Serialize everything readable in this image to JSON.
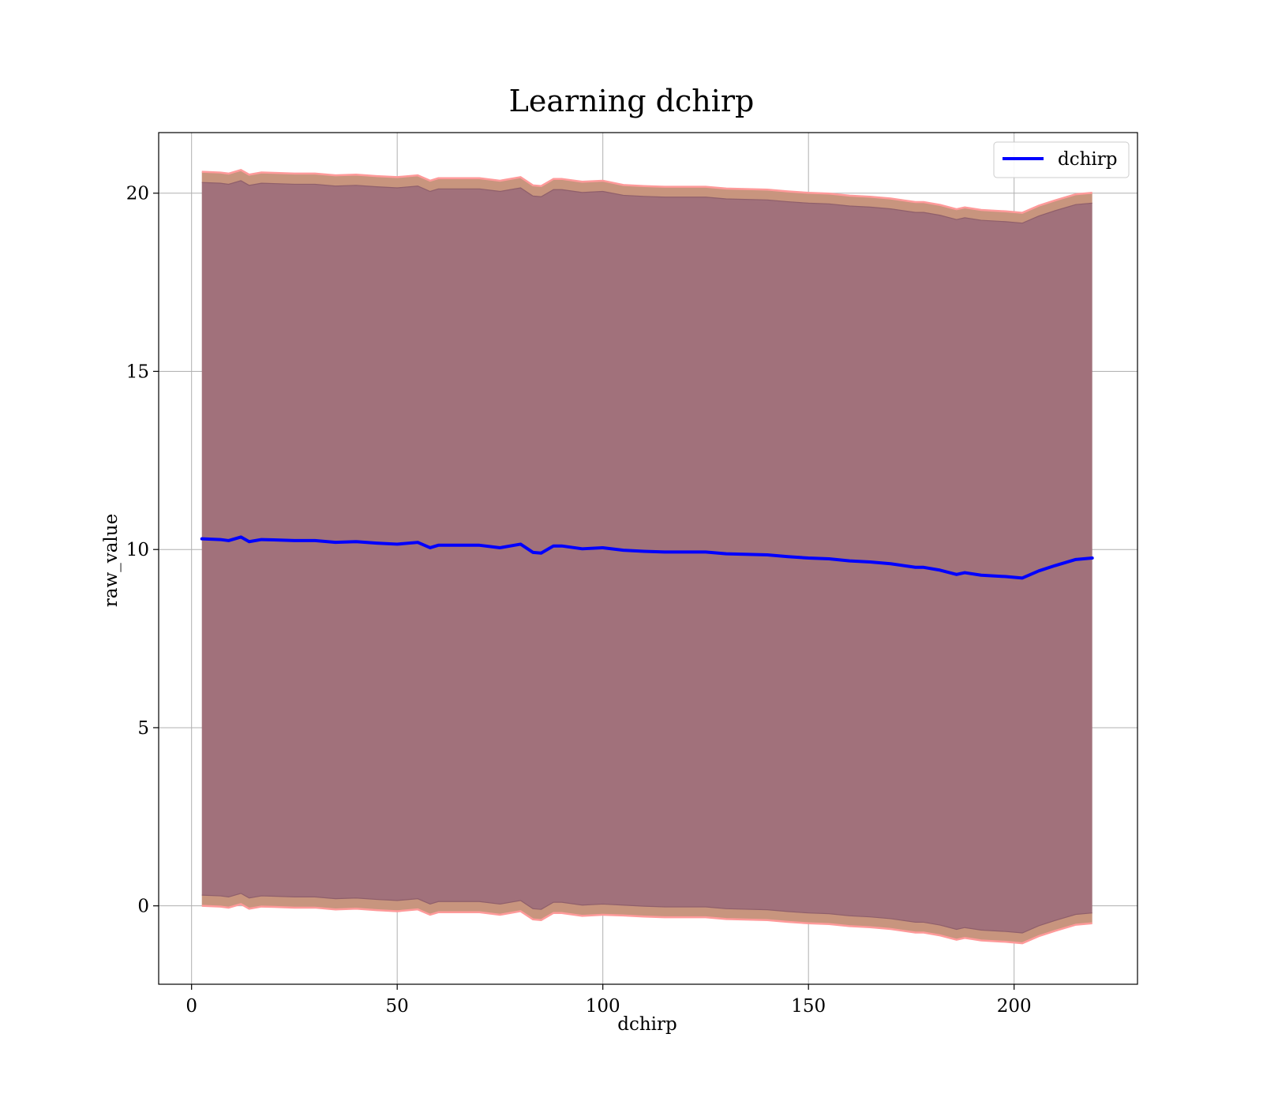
{
  "chart_data": {
    "type": "area",
    "title": "Learning dchirp",
    "xlabel": "dchirp",
    "ylabel": "raw_value",
    "xlim": [
      -8,
      230
    ],
    "ylim": [
      -2.2,
      21.7
    ],
    "xticks": [
      0,
      50,
      100,
      150,
      200
    ],
    "yticks": [
      0,
      5,
      10,
      15,
      20
    ],
    "grid": true,
    "legend": {
      "position": "top-right",
      "entries": [
        "dchirp"
      ]
    },
    "colors": {
      "line": "#0000ff",
      "band_inner": "#a1717b",
      "band_outer": "#c8957e",
      "band_edge": "#ff9a9a"
    },
    "series": [
      {
        "name": "dchirp",
        "x": [
          2.5,
          7,
          9,
          12,
          14,
          17,
          20,
          25,
          30,
          35,
          40,
          45,
          50,
          55,
          58,
          60,
          65,
          70,
          75,
          80,
          83,
          85,
          88,
          90,
          95,
          100,
          105,
          110,
          115,
          120,
          125,
          130,
          140,
          145,
          150,
          155,
          160,
          165,
          170,
          176,
          178,
          182,
          186,
          188,
          192,
          198,
          202,
          206,
          210,
          215,
          219
        ],
        "mean": [
          10.3,
          10.28,
          10.25,
          10.35,
          10.22,
          10.28,
          10.27,
          10.25,
          10.25,
          10.2,
          10.22,
          10.18,
          10.15,
          10.2,
          10.05,
          10.12,
          10.12,
          10.12,
          10.05,
          10.15,
          9.92,
          9.9,
          10.1,
          10.1,
          10.02,
          10.05,
          9.98,
          9.95,
          9.93,
          9.93,
          9.93,
          9.88,
          9.85,
          9.8,
          9.76,
          9.74,
          9.68,
          9.65,
          9.6,
          9.5,
          9.5,
          9.42,
          9.3,
          9.35,
          9.28,
          9.24,
          9.2,
          9.4,
          9.55,
          9.72,
          9.76
        ],
        "inner_band": [
          10.0,
          9.96
        ],
        "outer_band": [
          10.3,
          10.25
        ]
      }
    ]
  }
}
